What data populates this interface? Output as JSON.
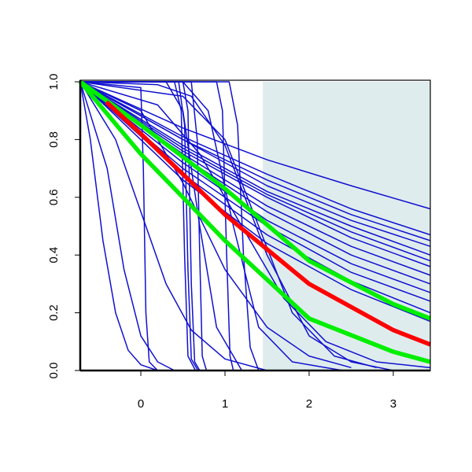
{
  "chart_data": {
    "type": "line",
    "xlim": [
      -0.72,
      3.44
    ],
    "ylim": [
      0,
      1
    ],
    "xticks": [
      0,
      1,
      2,
      3
    ],
    "yticks": [
      {
        "value": 0,
        "label": "0.0"
      },
      {
        "value": 0.2,
        "label": "0.2"
      },
      {
        "value": 0.4,
        "label": "0.4"
      },
      {
        "value": 0.6,
        "label": "0.6"
      },
      {
        "value": 0.8,
        "label": "0.8"
      },
      {
        "value": 1,
        "label": "1.0"
      }
    ],
    "shaded_region": {
      "x": [
        1.45,
        3.44
      ],
      "color": "#dfeced"
    },
    "series": [
      {
        "color": "#1010d0",
        "x": [
          -0.72,
          -0.6,
          -0.45,
          -0.3,
          -0.15,
          0,
          0.2
        ],
        "values": [
          1,
          0.8,
          0.45,
          0.2,
          0.07,
          0.02,
          0
        ]
      },
      {
        "color": "#1010d0",
        "x": [
          -0.72,
          -0.4,
          -0.2,
          0,
          0.2,
          0.4
        ],
        "values": [
          1,
          0.7,
          0.35,
          0.12,
          0.03,
          0
        ]
      },
      {
        "color": "#1010d0",
        "x": [
          -0.72,
          0,
          0.03,
          0.06,
          0.1,
          0.2
        ],
        "values": [
          1,
          0.98,
          0.7,
          0.2,
          0.03,
          0
        ]
      },
      {
        "color": "#1010d0",
        "x": [
          -0.72,
          0.4,
          0.48,
          0.52,
          0.56,
          0.65
        ],
        "values": [
          1,
          1,
          0.9,
          0.4,
          0.05,
          0
        ]
      },
      {
        "color": "#1010d0",
        "x": [
          -0.72,
          0.45,
          0.52,
          0.56,
          0.6,
          0.68
        ],
        "values": [
          1,
          1,
          0.85,
          0.35,
          0.04,
          0
        ]
      },
      {
        "color": "#1010d0",
        "x": [
          -0.72,
          0.5,
          0.56,
          0.6,
          0.64,
          0.7
        ],
        "values": [
          1,
          1,
          0.9,
          0.3,
          0.03,
          0
        ]
      },
      {
        "color": "#1010d0",
        "x": [
          -0.72,
          0.6,
          0.67,
          0.7,
          0.73,
          0.78
        ],
        "values": [
          1,
          1,
          0.8,
          0.4,
          0.05,
          0
        ]
      },
      {
        "color": "#1010d0",
        "x": [
          -0.72,
          0.9,
          0.97,
          1.02,
          1.06,
          1.1
        ],
        "values": [
          1,
          1,
          0.9,
          0.4,
          0.05,
          0
        ]
      },
      {
        "color": "#1010d0",
        "x": [
          -0.72,
          1.05,
          1.15,
          1.22,
          1.3,
          1.4
        ],
        "values": [
          1,
          1,
          0.85,
          0.4,
          0.08,
          0
        ]
      },
      {
        "color": "#1010d0",
        "x": [
          -0.72,
          0.3,
          0.5,
          0.7,
          0.9,
          1.2
        ],
        "values": [
          1,
          1,
          0.9,
          0.5,
          0.15,
          0
        ]
      },
      {
        "color": "#1010d0",
        "x": [
          -0.72,
          0.5,
          0.8,
          1.1,
          1.4,
          1.8,
          2.4
        ],
        "values": [
          1,
          1,
          0.9,
          0.5,
          0.15,
          0.03,
          0
        ]
      },
      {
        "color": "#1010d0",
        "x": [
          -0.72,
          0.2,
          0.6,
          1.0,
          1.5,
          2.0,
          2.5,
          3.0
        ],
        "values": [
          1,
          0.99,
          0.95,
          0.78,
          0.4,
          0.12,
          0.03,
          0
        ]
      },
      {
        "color": "#1010d0",
        "x": [
          -0.72,
          0.5,
          1.0,
          1.4,
          1.8,
          2.3,
          2.8
        ],
        "values": [
          1,
          0.95,
          0.8,
          0.5,
          0.2,
          0.05,
          0.01
        ]
      },
      {
        "color": "#1010d0",
        "x": [
          -0.72,
          -0.3,
          0,
          0.3,
          0.6,
          1.0,
          1.5
        ],
        "values": [
          1,
          0.8,
          0.55,
          0.3,
          0.14,
          0.04,
          0
        ]
      },
      {
        "color": "#1010d0",
        "x": [
          -0.72,
          0,
          0.5,
          1.0,
          1.5,
          2.0,
          2.5
        ],
        "values": [
          1,
          0.9,
          0.65,
          0.35,
          0.15,
          0.05,
          0.01
        ]
      },
      {
        "color": "#1010d0",
        "x": [
          -0.72,
          0.2,
          0.7,
          1.2,
          1.7,
          2.2,
          2.8,
          3.44
        ],
        "values": [
          1,
          0.92,
          0.75,
          0.5,
          0.25,
          0.1,
          0.03,
          0.01
        ]
      },
      {
        "color": "#1010d0",
        "x": [
          -0.72,
          0.5,
          1.5,
          2.5,
          3.44
        ],
        "values": [
          1,
          0.84,
          0.73,
          0.64,
          0.56
        ]
      },
      {
        "color": "#1010d0",
        "x": [
          -0.72,
          0.5,
          1.5,
          2.5,
          3.44
        ],
        "values": [
          1,
          0.81,
          0.68,
          0.56,
          0.47
        ]
      },
      {
        "color": "#1010d0",
        "x": [
          -0.72,
          0.5,
          1.5,
          2.5,
          3.44
        ],
        "values": [
          1,
          0.8,
          0.66,
          0.54,
          0.45
        ]
      },
      {
        "color": "#1010d0",
        "x": [
          -0.72,
          0.5,
          1.5,
          2.5,
          3.44
        ],
        "values": [
          1,
          0.78,
          0.62,
          0.5,
          0.4
        ]
      },
      {
        "color": "#1010d0",
        "x": [
          -0.72,
          0.5,
          1.5,
          2.5,
          3.44
        ],
        "values": [
          1,
          0.76,
          0.6,
          0.46,
          0.36
        ]
      },
      {
        "color": "#1010d0",
        "x": [
          -0.72,
          0.5,
          1.5,
          2.5,
          3.44
        ],
        "values": [
          1,
          0.75,
          0.57,
          0.43,
          0.33
        ]
      },
      {
        "color": "#1010d0",
        "x": [
          -0.72,
          0.5,
          1.5,
          2.5,
          3.44
        ],
        "values": [
          1,
          0.74,
          0.55,
          0.4,
          0.3
        ]
      },
      {
        "color": "#1010d0",
        "x": [
          -0.72,
          0.5,
          1.5,
          2.5,
          3.44
        ],
        "values": [
          1,
          0.72,
          0.52,
          0.37,
          0.27
        ]
      },
      {
        "color": "#1010d0",
        "x": [
          -0.72,
          0.5,
          1.5,
          2.5,
          3.44
        ],
        "values": [
          1,
          0.7,
          0.5,
          0.34,
          0.24
        ]
      },
      {
        "color": "#1010d0",
        "x": [
          -0.72,
          0.5,
          1.5,
          2.5,
          3.44
        ],
        "values": [
          1,
          0.68,
          0.47,
          0.31,
          0.2
        ]
      },
      {
        "color": "#1010d0",
        "x": [
          -0.72,
          0.5,
          1.5,
          2.5,
          3.44
        ],
        "values": [
          1,
          0.66,
          0.44,
          0.28,
          0.17
        ]
      },
      {
        "color": "#1010d0",
        "x": [
          -0.72,
          0.5,
          1.5,
          2.5,
          3.44
        ],
        "values": [
          1,
          0.8,
          0.64,
          0.52,
          0.43
        ]
      },
      {
        "color": "#1010d0",
        "x": [
          -0.72,
          0.5,
          1.5,
          2.5,
          3.44
        ],
        "values": [
          1,
          0.77,
          0.61,
          0.48,
          0.38
        ]
      }
    ],
    "highlight_series": [
      {
        "color": "#00ee00",
        "x": [
          -0.72,
          0,
          1,
          2,
          3,
          3.44
        ],
        "values": [
          1,
          0.85,
          0.63,
          0.38,
          0.23,
          0.18
        ]
      },
      {
        "color": "#00ee00",
        "x": [
          -0.72,
          0,
          1,
          2,
          3,
          3.44
        ],
        "values": [
          1,
          0.75,
          0.45,
          0.18,
          0.065,
          0.03
        ]
      },
      {
        "color": "#ff0000",
        "x": [
          -0.41,
          0,
          1,
          2,
          3,
          3.44
        ],
        "values": [
          0.93,
          0.82,
          0.54,
          0.3,
          0.14,
          0.09
        ]
      }
    ]
  }
}
